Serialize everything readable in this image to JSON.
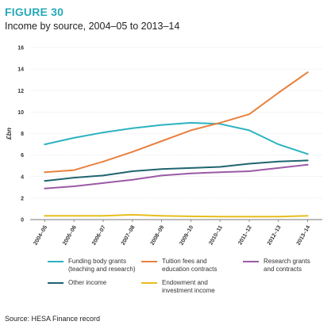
{
  "header": {
    "figure_label": "FIGURE 30",
    "title": "Income by source, 2004–05 to 2013–14"
  },
  "chart_data": {
    "type": "line",
    "title": "Income by source, 2004–05 to 2013–14",
    "xlabel": "",
    "ylabel": "£bn",
    "ylim": [
      0,
      16
    ],
    "yticks": [
      0,
      2,
      4,
      6,
      8,
      10,
      12,
      14,
      16
    ],
    "grid": true,
    "legend_position": "bottom",
    "categories": [
      "2004–05",
      "2005–06",
      "2006–07",
      "2007–08",
      "2008–09",
      "2009–10",
      "2010–11",
      "2011–12",
      "2012–13",
      "2013–14"
    ],
    "series": [
      {
        "name": "Funding body grants\n(teaching and research)",
        "color": "#2bb3c0",
        "values": [
          7.0,
          7.6,
          8.1,
          8.5,
          8.8,
          9.0,
          8.9,
          8.3,
          7.0,
          6.1
        ]
      },
      {
        "name": "Tuition fees and\neducation contracts",
        "color": "#e9803f",
        "values": [
          4.4,
          4.6,
          5.4,
          6.3,
          7.3,
          8.3,
          9.0,
          9.8,
          11.8,
          13.7
        ]
      },
      {
        "name": "Research grants\nand contracts",
        "color": "#9b5aa6",
        "values": [
          2.9,
          3.1,
          3.4,
          3.7,
          4.1,
          4.3,
          4.4,
          4.5,
          4.8,
          5.1
        ]
      },
      {
        "name": "Other income",
        "color": "#1f6470",
        "values": [
          3.6,
          3.9,
          4.1,
          4.5,
          4.7,
          4.8,
          4.9,
          5.2,
          5.4,
          5.5
        ]
      },
      {
        "name": "Endowment and\ninvestment income",
        "color": "#e6bd1c",
        "values": [
          0.35,
          0.35,
          0.35,
          0.45,
          0.35,
          0.3,
          0.28,
          0.28,
          0.28,
          0.35
        ]
      }
    ]
  },
  "source": "Source: HESA Finance record"
}
